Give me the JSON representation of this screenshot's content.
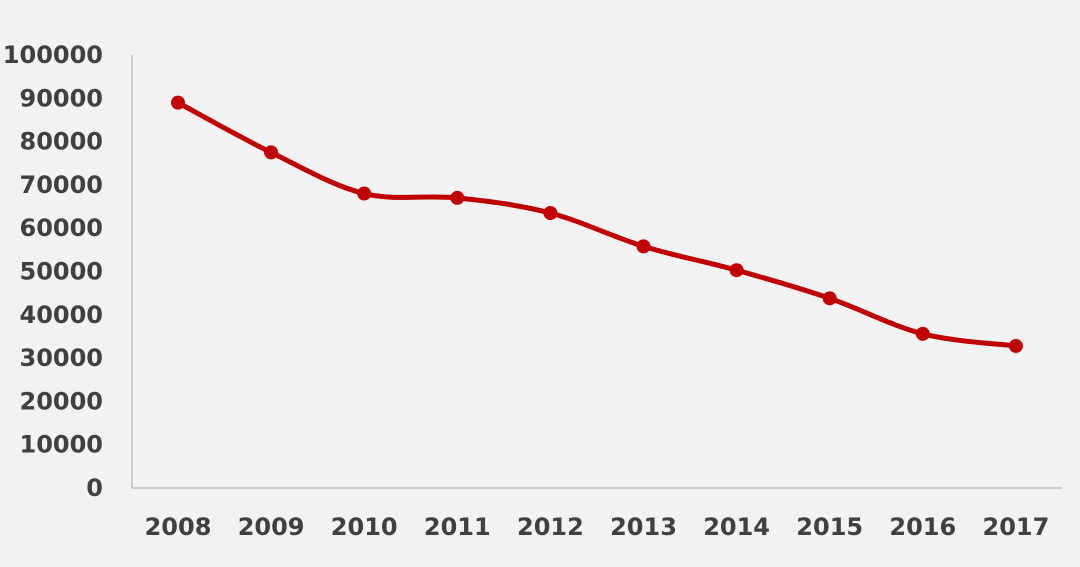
{
  "chart_data": {
    "type": "line",
    "title": "",
    "xlabel": "",
    "ylabel": "",
    "categories": [
      "2008",
      "2009",
      "2010",
      "2011",
      "2012",
      "2013",
      "2014",
      "2015",
      "2016",
      "2017"
    ],
    "series": [
      {
        "values": [
          89000,
          77500,
          68000,
          67000,
          63500,
          55800,
          50300,
          43800,
          35600,
          32800
        ],
        "color": "#c00000"
      }
    ],
    "ylim": [
      0,
      100000
    ],
    "yticks": [
      "0",
      "10000",
      "20000",
      "30000",
      "40000",
      "50000",
      "60000",
      "70000",
      "80000",
      "90000",
      "100000"
    ],
    "grid": false,
    "legend": "none",
    "axis_color": "#bfbfbf",
    "text_color": "#404040",
    "background": "#f2f2f2"
  }
}
